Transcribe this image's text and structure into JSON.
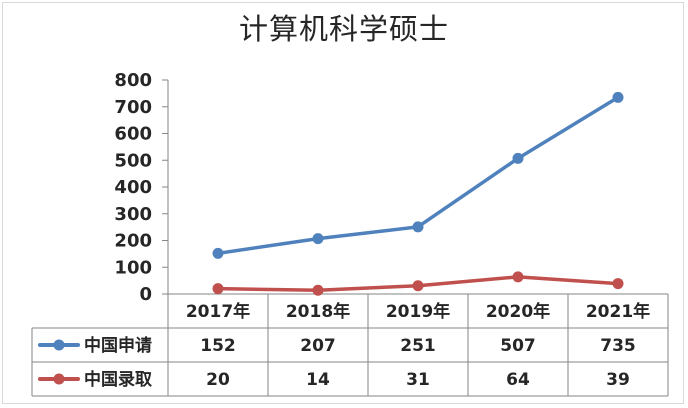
{
  "chart_data": {
    "type": "line",
    "title": "计算机科学硕士",
    "categories": [
      "2017年",
      "2018年",
      "2019年",
      "2020年",
      "2021年"
    ],
    "series": [
      {
        "name": "中国申请",
        "values": [
          152,
          207,
          251,
          507,
          735
        ],
        "color": "#4f81bd"
      },
      {
        "name": "中国录取",
        "values": [
          20,
          14,
          31,
          64,
          39
        ],
        "color": "#c0504d"
      }
    ],
    "ylim": [
      0,
      800
    ],
    "yticks": [
      0,
      100,
      200,
      300,
      400,
      500,
      600,
      700,
      800
    ],
    "grid": false,
    "legend": "data-table-left"
  }
}
